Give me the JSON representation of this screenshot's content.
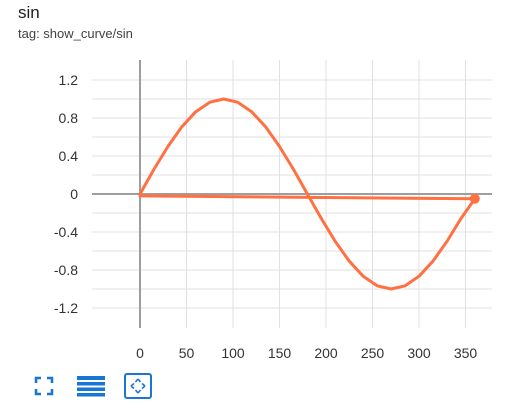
{
  "card": {
    "title": "sin",
    "tag": "tag: show_curve/sin"
  },
  "chart_data": {
    "type": "line",
    "title": "sin",
    "xlabel": "",
    "ylabel": "",
    "xlim": [
      0,
      360
    ],
    "ylim": [
      -1.3,
      1.3
    ],
    "x_ticks": [
      0,
      50,
      100,
      150,
      200,
      250,
      300,
      350
    ],
    "y_ticks": [
      -1.2,
      -0.8,
      -0.4,
      0,
      0.4,
      0.8,
      1.2
    ],
    "x_tick_labels": [
      "0",
      "50",
      "100",
      "150",
      "200",
      "250",
      "300",
      "350"
    ],
    "y_tick_labels": [
      "-1.2",
      "-0.8",
      "-0.4",
      "0",
      "0.4",
      "0.8",
      "1.2"
    ],
    "grid": true,
    "series": [
      {
        "color": "#ff7043",
        "x": [
          0,
          15,
          30,
          45,
          60,
          75,
          90,
          105,
          120,
          135,
          150,
          165,
          180,
          195,
          210,
          225,
          240,
          255,
          270,
          285,
          300,
          315,
          330,
          345,
          360,
          0,
          360
        ],
        "y": [
          0,
          0.259,
          0.5,
          0.707,
          0.866,
          0.966,
          1.0,
          0.966,
          0.866,
          0.707,
          0.5,
          0.259,
          0,
          -0.259,
          -0.5,
          -0.707,
          -0.866,
          -0.966,
          -1.0,
          -0.966,
          -0.866,
          -0.707,
          -0.5,
          -0.259,
          -0.05,
          -0.02,
          -0.05
        ]
      }
    ],
    "highlight_point": {
      "x": 360,
      "y": -0.05
    }
  },
  "colors": {
    "line": "#ff7043",
    "grid": "#e0e0e0",
    "axis": "#9e9e9e",
    "toolbar_icon": "#1976d2"
  },
  "toolbar": {
    "icons": [
      "fullscreen-icon",
      "toggle-log-scale-icon",
      "fit-domain-icon"
    ]
  }
}
